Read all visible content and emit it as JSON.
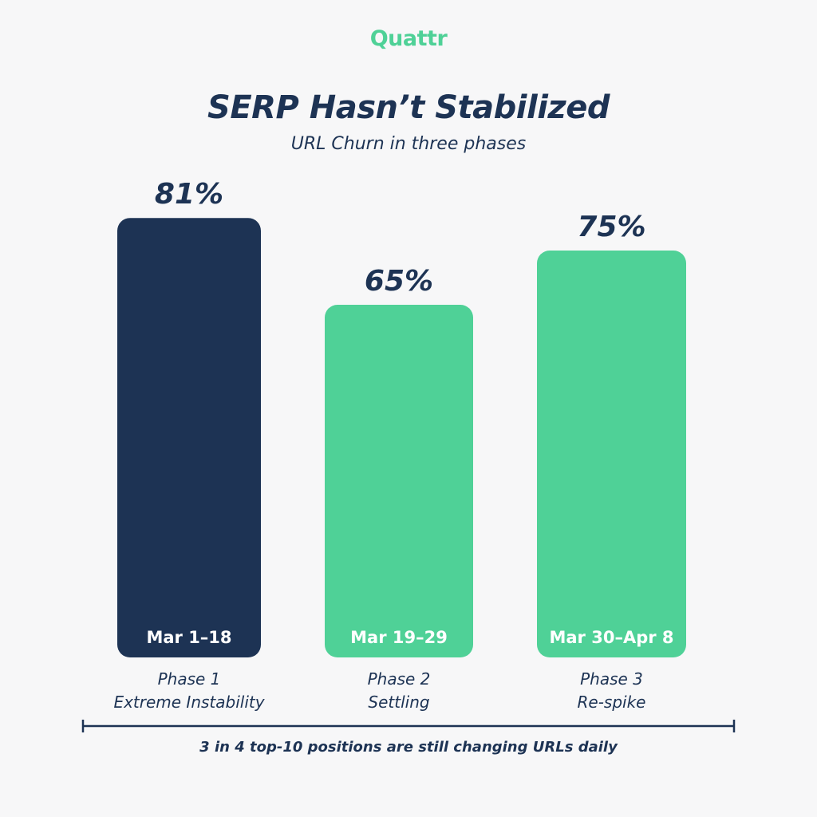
{
  "brand": {
    "logo_text": "Quattr",
    "logo_color": "#4fd197"
  },
  "header": {
    "title": "SERP Hasn’t Stabilized",
    "subtitle": "URL Churn in three phases"
  },
  "footer": {
    "note": "3 in 4 top-10 positions are still changing URLs daily"
  },
  "colors": {
    "navy": "#1d3354",
    "green": "#4fd197",
    "background": "#f7f7f8"
  },
  "chart_data": {
    "type": "bar",
    "title": "SERP Hasn’t Stabilized",
    "subtitle": "URL Churn in three phases",
    "categories": [
      "Mar 1–18",
      "Mar 19–29",
      "Mar 30–Apr 8"
    ],
    "values": [
      81,
      65,
      75
    ],
    "value_labels": [
      "81%",
      "65%",
      "75%"
    ],
    "phase_names": [
      "Phase 1",
      "Phase 2",
      "Phase 3"
    ],
    "phase_descriptions": [
      "Extreme Instability",
      "Settling",
      "Re-spike"
    ],
    "bar_colors": [
      "#1d3354",
      "#4fd197",
      "#4fd197"
    ],
    "unit": "%",
    "ylim": [
      0,
      100
    ],
    "grid": false,
    "legend": "none"
  }
}
